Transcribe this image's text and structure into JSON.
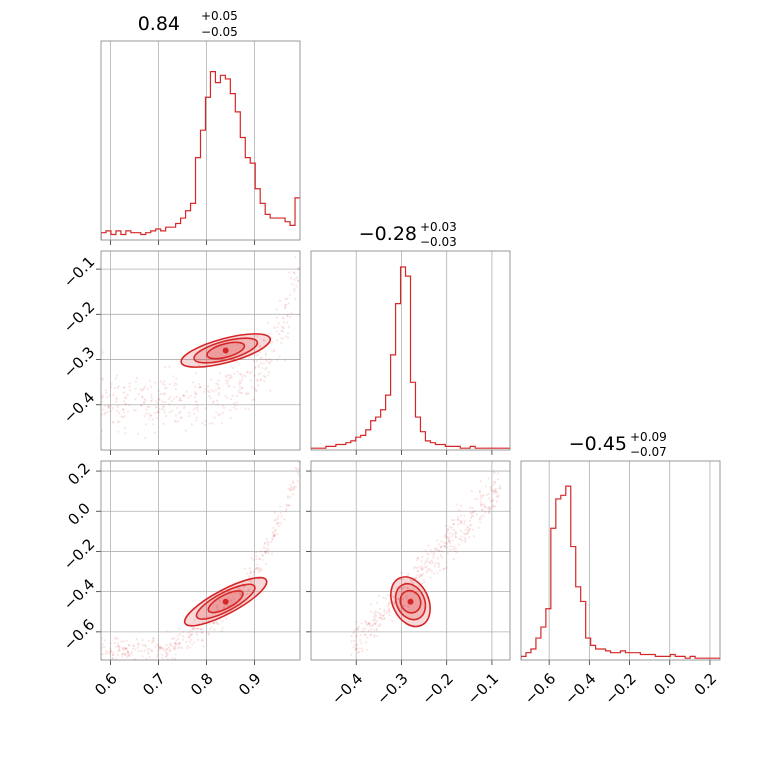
{
  "chart_data": {
    "type": "corner",
    "color": "#d62728",
    "grid": true,
    "legend": "none",
    "parameters": [
      {
        "title_value": "0.84",
        "title_plus": "+0.05",
        "title_minus": "−0.05",
        "xlim": [
          0.58,
          0.995
        ],
        "ticks": [
          0.6,
          0.7,
          0.8,
          0.9
        ],
        "tick_labels": [
          "0.6",
          "0.7",
          "0.8",
          "0.9"
        ],
        "hist": [
          0.04,
          0.05,
          0.03,
          0.05,
          0.03,
          0.05,
          0.04,
          0.04,
          0.03,
          0.04,
          0.05,
          0.06,
          0.05,
          0.07,
          0.07,
          0.09,
          0.12,
          0.16,
          0.2,
          0.45,
          0.6,
          0.78,
          0.92,
          0.86,
          0.9,
          0.88,
          0.8,
          0.7,
          0.56,
          0.45,
          0.42,
          0.28,
          0.2,
          0.14,
          0.12,
          0.12,
          0.12,
          0.1,
          0.08,
          0.23
        ]
      },
      {
        "title_value": "−0.28",
        "title_plus": "+0.03",
        "title_minus": "−0.03",
        "xlim": [
          -0.5,
          -0.06
        ],
        "ticks": [
          -0.4,
          -0.3,
          -0.2,
          -0.1
        ],
        "tick_labels": [
          "−0.4",
          "−0.3",
          "−0.2",
          "−0.1"
        ],
        "hist": [
          0.01,
          0.01,
          0.01,
          0.02,
          0.02,
          0.03,
          0.03,
          0.04,
          0.05,
          0.07,
          0.08,
          0.11,
          0.16,
          0.18,
          0.22,
          0.3,
          0.52,
          0.8,
          1.0,
          0.95,
          0.37,
          0.18,
          0.1,
          0.05,
          0.04,
          0.03,
          0.03,
          0.02,
          0.02,
          0.02,
          0.01,
          0.01,
          0.02,
          0.01,
          0.01,
          0.01,
          0.01,
          0.01,
          0.01,
          0.01
        ]
      },
      {
        "title_value": "−0.45",
        "title_plus": "+0.09",
        "title_minus": "−0.07",
        "xlim": [
          -0.74,
          0.25
        ],
        "ticks": [
          -0.6,
          -0.4,
          -0.2,
          0.0,
          0.2
        ],
        "tick_labels": [
          "−0.6",
          "−0.4",
          "−0.2",
          "0.0",
          "0.2"
        ],
        "hist": [
          0.02,
          0.04,
          0.06,
          0.12,
          0.18,
          0.28,
          0.72,
          0.88,
          0.9,
          0.95,
          0.62,
          0.4,
          0.32,
          0.12,
          0.08,
          0.06,
          0.06,
          0.05,
          0.04,
          0.04,
          0.05,
          0.04,
          0.04,
          0.04,
          0.03,
          0.03,
          0.03,
          0.02,
          0.02,
          0.02,
          0.03,
          0.02,
          0.02,
          0.01,
          0.02,
          0.01,
          0.01,
          0.01,
          0.01,
          0.01
        ]
      }
    ],
    "row_ticks": {
      "1": {
        "ylim": [
          -0.5,
          -0.06
        ],
        "ticks": [
          -0.1,
          -0.2,
          -0.3,
          -0.4
        ],
        "tick_labels": [
          "−0.1",
          "−0.2",
          "−0.3",
          "−0.4"
        ]
      },
      "2": {
        "ylim": [
          -0.74,
          0.25
        ],
        "ticks": [
          0.2,
          0.0,
          -0.2,
          -0.4,
          -0.6
        ],
        "tick_labels": [
          "0.2",
          "0.0",
          "−0.2",
          "−0.4",
          "−0.6"
        ]
      }
    },
    "joint": [
      {
        "row": 1,
        "col": 0,
        "center": [
          0.84,
          -0.28
        ],
        "trend": "curved up near x=0.99",
        "levels": 3
      },
      {
        "row": 2,
        "col": 0,
        "center": [
          0.84,
          -0.45
        ],
        "trend": "curved up near x=0.99",
        "levels": 3
      },
      {
        "row": 2,
        "col": 1,
        "center": [
          -0.28,
          -0.45
        ],
        "trend": "positively correlated",
        "levels": 3
      }
    ]
  }
}
